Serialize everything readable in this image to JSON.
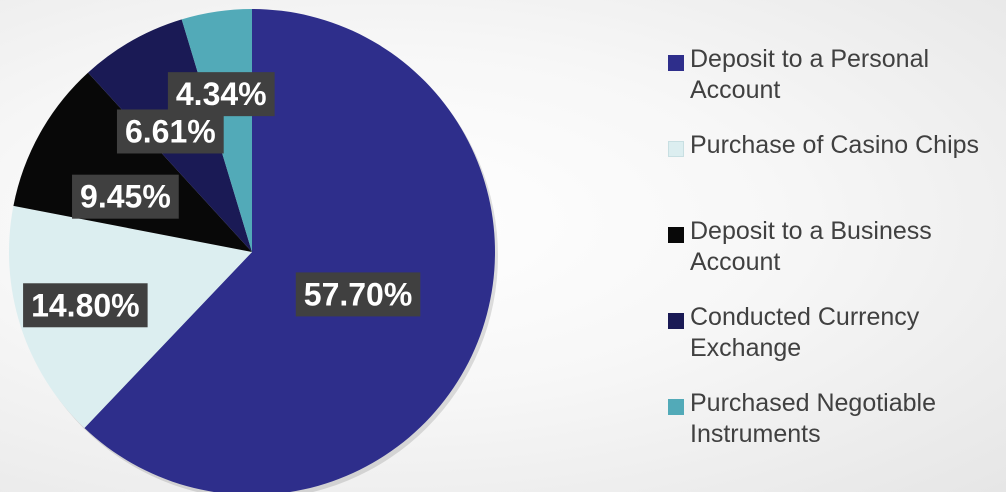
{
  "chart_data": {
    "type": "pie",
    "title": "",
    "start_angle_deg": 0,
    "direction": "clockwise",
    "legend_position": "right",
    "series": [
      {
        "name": "Deposit to a Personal Account",
        "value": 57.7,
        "label": "57.70%",
        "color": "#2E2E8B"
      },
      {
        "name": "Purchase of Casino Chips",
        "value": 14.8,
        "label": "14.80%",
        "color": "#DCEEF0"
      },
      {
        "name": "Deposit to a Business Account",
        "value": 9.45,
        "label": "9.45%",
        "color": "#080808"
      },
      {
        "name": "Conducted Currency Exchange",
        "value": 6.61,
        "label": "6.61%",
        "color": "#1A1A55"
      },
      {
        "name": "Purchased Negotiable Instruments",
        "value": 4.34,
        "label": "4.34%",
        "color": "#52AAB8"
      }
    ]
  }
}
